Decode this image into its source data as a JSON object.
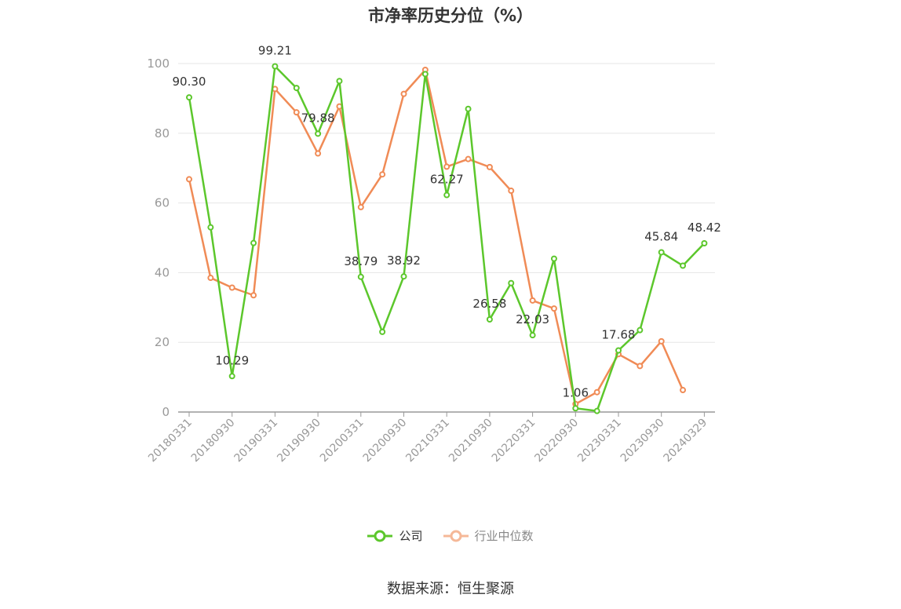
{
  "title": "市净率历史分位（%）",
  "source": "数据来源：恒生聚源",
  "colors": {
    "company": "#5cc72c",
    "industry": "#f08b56",
    "grid": "#e6e6e6",
    "axis": "#999999",
    "label": "#333333"
  },
  "chart_data": {
    "type": "line",
    "title": "市净率历史分位（%）",
    "xlabel": "",
    "ylabel": "",
    "ylim": [
      0,
      100
    ],
    "yticks": [
      0,
      20,
      40,
      60,
      80,
      100
    ],
    "grid": true,
    "legend_position": "bottom",
    "x": [
      "20180331",
      "20180630",
      "20180930",
      "20181231",
      "20190331",
      "20190630",
      "20190930",
      "20191231",
      "20200331",
      "20200630",
      "20200930",
      "20201231",
      "20210331",
      "20210630",
      "20210930",
      "20211231",
      "20220331",
      "20220630",
      "20220930",
      "20221231",
      "20230331",
      "20230630",
      "20230930",
      "20231231",
      "20240329"
    ],
    "xtick_labels": [
      "20180331",
      "20180930",
      "20190331",
      "20190930",
      "20200331",
      "20200930",
      "20210331",
      "20210930",
      "20220331",
      "20220930",
      "20230331",
      "20230930",
      "20240329"
    ],
    "series": [
      {
        "name": "公司",
        "values": [
          90.3,
          53.0,
          10.29,
          48.5,
          99.21,
          93.0,
          79.88,
          95.0,
          38.79,
          23.0,
          38.92,
          97.0,
          62.27,
          87.0,
          26.58,
          37.0,
          22.03,
          44.0,
          1.06,
          0.3,
          17.68,
          23.5,
          45.84,
          42.0,
          48.42
        ],
        "data_labels": [
          "90.30",
          null,
          "10.29",
          null,
          "99.21",
          null,
          "79.88",
          null,
          "38.79",
          null,
          "38.92",
          null,
          "62.27",
          null,
          "26.58",
          null,
          "22.03",
          null,
          "1.06",
          null,
          "17.68",
          null,
          "45.84",
          null,
          "48.42"
        ]
      },
      {
        "name": "行业中位数",
        "values": [
          66.8,
          38.5,
          35.7,
          33.5,
          92.7,
          86.0,
          74.2,
          87.7,
          58.8,
          68.2,
          91.3,
          98.2,
          70.4,
          72.6,
          70.3,
          63.5,
          32.0,
          29.7,
          2.3,
          5.7,
          16.6,
          13.2,
          20.3,
          6.3,
          null
        ]
      }
    ]
  }
}
